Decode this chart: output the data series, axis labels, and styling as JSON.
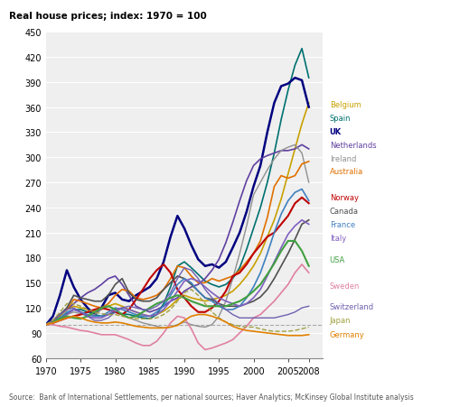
{
  "title": "Real house prices; index: 1970 = 100",
  "source": "Source:  Bank of International Settlements, per national sources; Haver Analytics; McKinsey Global Institute analysis",
  "ylim": [
    60,
    450
  ],
  "xlim": [
    1970,
    2010
  ],
  "yticks": [
    60,
    90,
    120,
    150,
    180,
    210,
    240,
    270,
    300,
    330,
    360,
    390,
    420,
    450
  ],
  "xticks": [
    1970,
    1975,
    1980,
    1985,
    1990,
    1995,
    2000,
    2005,
    2008
  ],
  "background_color": "#ffffff",
  "countries": {
    "Belgium": {
      "color": "#c8a000",
      "linewidth": 1.2,
      "linestyle": "solid",
      "data": {
        "1970": 100,
        "1971": 104,
        "1972": 110,
        "1973": 118,
        "1974": 122,
        "1975": 120,
        "1976": 118,
        "1977": 116,
        "1978": 118,
        "1979": 122,
        "1980": 125,
        "1981": 122,
        "1982": 118,
        "1983": 115,
        "1984": 112,
        "1985": 110,
        "1986": 112,
        "1987": 116,
        "1988": 122,
        "1989": 130,
        "1990": 135,
        "1991": 132,
        "1992": 130,
        "1993": 128,
        "1994": 130,
        "1995": 132,
        "1996": 135,
        "1997": 140,
        "1998": 148,
        "1999": 158,
        "2000": 170,
        "2001": 185,
        "2002": 205,
        "2003": 225,
        "2004": 250,
        "2005": 280,
        "2006": 310,
        "2007": 340,
        "2008": 365
      }
    },
    "Spain": {
      "color": "#007070",
      "linewidth": 1.2,
      "linestyle": "solid",
      "data": {
        "1970": 100,
        "1971": 104,
        "1972": 108,
        "1973": 113,
        "1974": 118,
        "1975": 118,
        "1976": 115,
        "1977": 112,
        "1978": 110,
        "1979": 112,
        "1980": 115,
        "1981": 113,
        "1982": 112,
        "1983": 110,
        "1984": 108,
        "1985": 107,
        "1986": 112,
        "1987": 125,
        "1988": 145,
        "1989": 170,
        "1990": 175,
        "1991": 168,
        "1992": 160,
        "1993": 152,
        "1994": 148,
        "1995": 145,
        "1996": 148,
        "1997": 155,
        "1998": 168,
        "1999": 190,
        "2000": 215,
        "2001": 240,
        "2002": 270,
        "2003": 305,
        "2004": 345,
        "2005": 380,
        "2006": 410,
        "2007": 430,
        "2008": 395
      }
    },
    "UK": {
      "color": "#000080",
      "linewidth": 1.8,
      "linestyle": "solid",
      "data": {
        "1970": 100,
        "1971": 110,
        "1972": 135,
        "1973": 165,
        "1974": 145,
        "1975": 130,
        "1976": 120,
        "1977": 112,
        "1978": 120,
        "1979": 135,
        "1980": 138,
        "1981": 130,
        "1982": 128,
        "1983": 135,
        "1984": 140,
        "1985": 145,
        "1986": 155,
        "1987": 175,
        "1988": 205,
        "1989": 230,
        "1990": 215,
        "1991": 195,
        "1992": 178,
        "1993": 170,
        "1994": 172,
        "1995": 168,
        "1996": 175,
        "1997": 192,
        "1998": 210,
        "1999": 235,
        "2000": 265,
        "2001": 290,
        "2002": 330,
        "2003": 365,
        "2004": 385,
        "2005": 388,
        "2006": 395,
        "2007": 392,
        "2008": 360
      }
    },
    "Netherlands": {
      "color": "#6040a0",
      "linewidth": 1.2,
      "linestyle": "solid",
      "data": {
        "1970": 100,
        "1971": 105,
        "1972": 112,
        "1973": 118,
        "1974": 125,
        "1975": 132,
        "1976": 138,
        "1977": 142,
        "1978": 148,
        "1979": 155,
        "1980": 158,
        "1981": 148,
        "1982": 135,
        "1983": 122,
        "1984": 118,
        "1985": 115,
        "1986": 118,
        "1987": 122,
        "1988": 128,
        "1989": 132,
        "1990": 140,
        "1991": 145,
        "1992": 148,
        "1993": 155,
        "1994": 165,
        "1995": 178,
        "1996": 198,
        "1997": 222,
        "1998": 248,
        "1999": 272,
        "2000": 290,
        "2001": 298,
        "2002": 302,
        "2003": 305,
        "2004": 308,
        "2005": 308,
        "2006": 310,
        "2007": 315,
        "2008": 310
      }
    },
    "Ireland": {
      "color": "#909090",
      "linewidth": 1.0,
      "linestyle": "solid",
      "data": {
        "1970": 100,
        "1971": 103,
        "1972": 107,
        "1973": 112,
        "1974": 115,
        "1975": 113,
        "1976": 110,
        "1977": 112,
        "1978": 118,
        "1979": 122,
        "1980": 118,
        "1981": 112,
        "1982": 108,
        "1983": 105,
        "1984": 102,
        "1985": 100,
        "1986": 98,
        "1987": 96,
        "1988": 97,
        "1989": 100,
        "1990": 103,
        "1991": 100,
        "1992": 98,
        "1993": 97,
        "1994": 100,
        "1995": 110,
        "1996": 128,
        "1997": 155,
        "1998": 185,
        "1999": 218,
        "2000": 255,
        "2001": 270,
        "2002": 285,
        "2003": 298,
        "2004": 308,
        "2005": 312,
        "2006": 315,
        "2007": 305,
        "2008": 270
      }
    },
    "Australia": {
      "color": "#e07000",
      "linewidth": 1.2,
      "linestyle": "solid",
      "data": {
        "1970": 100,
        "1971": 105,
        "1972": 112,
        "1973": 118,
        "1974": 130,
        "1975": 128,
        "1976": 125,
        "1977": 122,
        "1978": 120,
        "1979": 125,
        "1980": 135,
        "1981": 142,
        "1982": 140,
        "1983": 132,
        "1984": 130,
        "1985": 132,
        "1986": 135,
        "1987": 142,
        "1988": 155,
        "1989": 170,
        "1990": 168,
        "1991": 158,
        "1992": 150,
        "1993": 150,
        "1994": 155,
        "1995": 152,
        "1996": 155,
        "1997": 158,
        "1998": 165,
        "1999": 175,
        "2000": 185,
        "2001": 200,
        "2002": 228,
        "2003": 265,
        "2004": 278,
        "2005": 275,
        "2006": 278,
        "2007": 292,
        "2008": 295
      }
    },
    "Norway": {
      "color": "#c00000",
      "linewidth": 1.5,
      "linestyle": "solid",
      "data": {
        "1970": 100,
        "1971": 102,
        "1972": 105,
        "1973": 108,
        "1974": 110,
        "1975": 112,
        "1976": 115,
        "1977": 118,
        "1978": 120,
        "1979": 118,
        "1980": 115,
        "1981": 112,
        "1982": 118,
        "1983": 130,
        "1984": 142,
        "1985": 155,
        "1986": 165,
        "1987": 172,
        "1988": 162,
        "1989": 142,
        "1990": 132,
        "1991": 122,
        "1992": 115,
        "1993": 115,
        "1994": 120,
        "1995": 128,
        "1996": 140,
        "1997": 158,
        "1998": 162,
        "1999": 172,
        "2000": 185,
        "2001": 195,
        "2002": 205,
        "2003": 210,
        "2004": 220,
        "2005": 230,
        "2006": 245,
        "2007": 252,
        "2008": 245
      }
    },
    "Canada": {
      "color": "#505050",
      "linewidth": 1.2,
      "linestyle": "solid",
      "data": {
        "1970": 100,
        "1971": 105,
        "1972": 112,
        "1973": 120,
        "1974": 135,
        "1975": 132,
        "1976": 130,
        "1977": 128,
        "1978": 128,
        "1979": 135,
        "1980": 148,
        "1981": 155,
        "1982": 138,
        "1983": 130,
        "1984": 128,
        "1985": 128,
        "1986": 132,
        "1987": 142,
        "1988": 150,
        "1989": 158,
        "1990": 155,
        "1991": 148,
        "1992": 140,
        "1993": 132,
        "1994": 130,
        "1995": 125,
        "1996": 122,
        "1997": 122,
        "1998": 122,
        "1999": 125,
        "2000": 128,
        "2001": 133,
        "2002": 142,
        "2003": 155,
        "2004": 170,
        "2005": 185,
        "2006": 202,
        "2007": 220,
        "2008": 225
      }
    },
    "France": {
      "color": "#4080c0",
      "linewidth": 1.2,
      "linestyle": "solid",
      "data": {
        "1970": 100,
        "1971": 103,
        "1972": 108,
        "1973": 115,
        "1974": 118,
        "1975": 115,
        "1976": 112,
        "1977": 110,
        "1978": 110,
        "1979": 115,
        "1980": 120,
        "1981": 118,
        "1982": 115,
        "1983": 112,
        "1984": 110,
        "1985": 110,
        "1986": 115,
        "1987": 122,
        "1988": 135,
        "1989": 148,
        "1990": 155,
        "1991": 150,
        "1992": 140,
        "1993": 132,
        "1994": 128,
        "1995": 122,
        "1996": 118,
        "1997": 118,
        "1998": 122,
        "1999": 132,
        "2000": 145,
        "2001": 162,
        "2002": 185,
        "2003": 210,
        "2004": 232,
        "2005": 248,
        "2006": 258,
        "2007": 262,
        "2008": 248
      }
    },
    "Italy": {
      "color": "#8060c0",
      "linewidth": 1.2,
      "linestyle": "solid",
      "data": {
        "1970": 100,
        "1971": 103,
        "1972": 106,
        "1973": 112,
        "1974": 118,
        "1975": 115,
        "1976": 110,
        "1977": 108,
        "1978": 108,
        "1979": 112,
        "1980": 118,
        "1981": 120,
        "1982": 118,
        "1983": 115,
        "1984": 112,
        "1985": 110,
        "1986": 112,
        "1987": 118,
        "1988": 128,
        "1989": 140,
        "1990": 152,
        "1991": 155,
        "1992": 152,
        "1993": 145,
        "1994": 138,
        "1995": 132,
        "1996": 128,
        "1997": 125,
        "1998": 122,
        "1999": 125,
        "2000": 132,
        "2001": 142,
        "2002": 158,
        "2003": 175,
        "2004": 192,
        "2005": 208,
        "2006": 218,
        "2007": 225,
        "2008": 220
      }
    },
    "USA": {
      "color": "#40a040",
      "linewidth": 1.5,
      "linestyle": "solid",
      "data": {
        "1970": 100,
        "1971": 103,
        "1972": 107,
        "1973": 110,
        "1974": 108,
        "1975": 107,
        "1976": 110,
        "1977": 115,
        "1978": 120,
        "1979": 122,
        "1980": 118,
        "1981": 112,
        "1982": 108,
        "1983": 110,
        "1984": 115,
        "1985": 120,
        "1986": 125,
        "1987": 128,
        "1988": 132,
        "1989": 135,
        "1990": 132,
        "1991": 128,
        "1992": 125,
        "1993": 122,
        "1994": 122,
        "1995": 122,
        "1996": 122,
        "1997": 125,
        "1998": 128,
        "1999": 133,
        "2000": 140,
        "2001": 148,
        "2002": 160,
        "2003": 173,
        "2004": 188,
        "2005": 200,
        "2006": 200,
        "2007": 188,
        "2008": 170
      }
    },
    "Sweden": {
      "color": "#e080a0",
      "linewidth": 1.2,
      "linestyle": "solid",
      "data": {
        "1970": 100,
        "1971": 100,
        "1972": 98,
        "1973": 97,
        "1974": 95,
        "1975": 93,
        "1976": 92,
        "1977": 90,
        "1978": 88,
        "1979": 88,
        "1980": 88,
        "1981": 85,
        "1982": 82,
        "1983": 78,
        "1984": 75,
        "1985": 75,
        "1986": 80,
        "1987": 90,
        "1988": 102,
        "1989": 110,
        "1990": 108,
        "1991": 95,
        "1992": 78,
        "1993": 70,
        "1994": 72,
        "1995": 75,
        "1996": 78,
        "1997": 82,
        "1998": 90,
        "1999": 98,
        "2000": 108,
        "2001": 112,
        "2002": 120,
        "2003": 128,
        "2004": 138,
        "2005": 148,
        "2006": 162,
        "2007": 172,
        "2008": 162
      }
    },
    "Switzerland": {
      "color": "#7060b0",
      "linewidth": 1.0,
      "linestyle": "solid",
      "data": {
        "1970": 100,
        "1971": 105,
        "1972": 112,
        "1973": 118,
        "1974": 120,
        "1975": 115,
        "1976": 110,
        "1977": 105,
        "1978": 105,
        "1979": 108,
        "1980": 115,
        "1981": 120,
        "1982": 122,
        "1983": 120,
        "1984": 118,
        "1985": 118,
        "1986": 122,
        "1987": 128,
        "1988": 138,
        "1989": 155,
        "1990": 168,
        "1991": 165,
        "1992": 155,
        "1993": 142,
        "1994": 132,
        "1995": 125,
        "1996": 118,
        "1997": 112,
        "1998": 108,
        "1999": 108,
        "2000": 108,
        "2001": 108,
        "2002": 108,
        "2003": 108,
        "2004": 110,
        "2005": 112,
        "2006": 115,
        "2007": 120,
        "2008": 122
      }
    },
    "Japan": {
      "color": "#a0a040",
      "linewidth": 1.0,
      "linestyle": "dashed",
      "data": {
        "1970": 100,
        "1971": 105,
        "1972": 115,
        "1973": 125,
        "1974": 125,
        "1975": 122,
        "1976": 118,
        "1977": 115,
        "1978": 113,
        "1979": 112,
        "1980": 112,
        "1981": 110,
        "1982": 108,
        "1983": 107,
        "1984": 107,
        "1985": 107,
        "1986": 108,
        "1987": 112,
        "1988": 118,
        "1989": 128,
        "1990": 138,
        "1991": 142,
        "1992": 135,
        "1993": 125,
        "1994": 115,
        "1995": 108,
        "1996": 103,
        "1997": 100,
        "1998": 98,
        "1999": 97,
        "2000": 97,
        "2001": 95,
        "2002": 93,
        "2003": 92,
        "2004": 92,
        "2005": 92,
        "2006": 93,
        "2007": 95,
        "2008": 97
      }
    },
    "Germany": {
      "color": "#e08000",
      "linewidth": 1.2,
      "linestyle": "solid",
      "data": {
        "1970": 100,
        "1971": 102,
        "1972": 105,
        "1973": 108,
        "1974": 110,
        "1975": 108,
        "1976": 105,
        "1977": 103,
        "1978": 102,
        "1979": 102,
        "1980": 103,
        "1981": 102,
        "1982": 100,
        "1983": 98,
        "1984": 97,
        "1985": 96,
        "1986": 96,
        "1987": 96,
        "1988": 97,
        "1989": 99,
        "1990": 105,
        "1991": 110,
        "1992": 112,
        "1993": 112,
        "1994": 110,
        "1995": 107,
        "1996": 103,
        "1997": 98,
        "1998": 95,
        "1999": 93,
        "2000": 92,
        "2001": 91,
        "2002": 90,
        "2003": 89,
        "2004": 88,
        "2005": 87,
        "2006": 87,
        "2007": 87,
        "2008": 88
      }
    }
  },
  "legend_order": [
    "Belgium",
    "Spain",
    "UK",
    "Netherlands",
    "Ireland",
    "Australia",
    "Norway",
    "Canada",
    "France",
    "Italy",
    "USA",
    "Sweden",
    "Switzerland",
    "Japan",
    "Germany"
  ],
  "legend_y_positions": {
    "Belgium": 363,
    "Spain": 347,
    "UK": 331,
    "Netherlands": 315,
    "Ireland": 299,
    "Australia": 283,
    "Norway": 252,
    "Canada": 236,
    "France": 220,
    "Italy": 204,
    "USA": 178,
    "Sweden": 147,
    "Switzerland": 122,
    "Japan": 106,
    "Germany": 88
  },
  "legend_bold": [
    "UK"
  ]
}
